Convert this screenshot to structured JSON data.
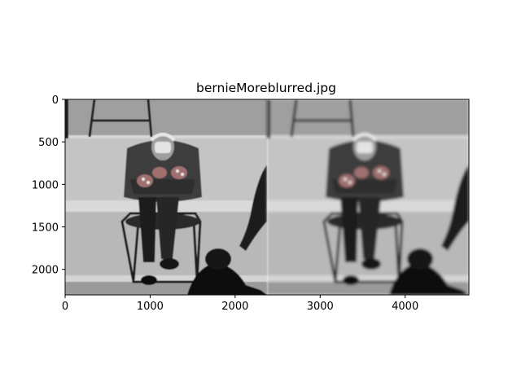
{
  "chart_data": {
    "type": "image",
    "title": "bernieMoreblurred.jpg",
    "xlabel": "",
    "ylabel": "",
    "xlim": [
      0,
      4750
    ],
    "ylim": [
      2300,
      0
    ],
    "y_inverted": true,
    "x_ticks": [
      0,
      1000,
      2000,
      3000,
      4000
    ],
    "y_ticks": [
      0,
      500,
      1000,
      1500,
      2000
    ],
    "grid": false,
    "legend": "none",
    "panels": [
      {
        "description": "grayscale photo, original",
        "x_start": 0,
        "x_end": 2375
      },
      {
        "description": "grayscale photo, more blurred",
        "x_start": 2375,
        "x_end": 4750
      }
    ],
    "colors": {
      "wall_light": "#c9c9c9",
      "wall_mid": "#a9a9a9",
      "coat": "#3a3a3a",
      "dark": "#111111",
      "mitten_accent": "#8a4a4a"
    }
  }
}
